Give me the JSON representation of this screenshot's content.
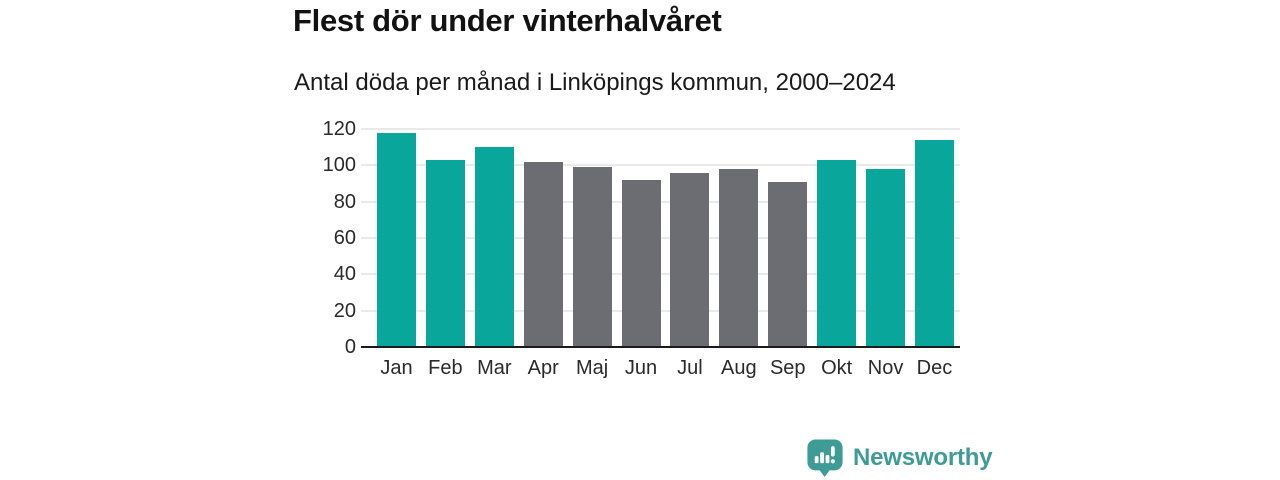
{
  "header": {
    "title": "Flest dör under vinterhalvåret",
    "subtitle": "Antal döda per månad i Linköpings kommun, 2000–2024"
  },
  "chart_data": {
    "type": "bar",
    "title": "Flest dör under vinterhalvåret",
    "subtitle": "Antal döda per månad i Linköpings kommun, 2000–2024",
    "categories": [
      "Jan",
      "Feb",
      "Mar",
      "Apr",
      "Maj",
      "Jun",
      "Jul",
      "Aug",
      "Sep",
      "Okt",
      "Nov",
      "Dec"
    ],
    "values": [
      118,
      103,
      110,
      102,
      99,
      92,
      96,
      98,
      91,
      103,
      98,
      114
    ],
    "xlabel": "",
    "ylabel": "",
    "ylim": [
      0,
      120
    ],
    "yticks": [
      0,
      20,
      40,
      60,
      80,
      100,
      120
    ],
    "grid": true,
    "legend": false,
    "highlight_color": "#09A79B",
    "base_color": "#6C6C73",
    "highlighted_categories": [
      "Jan",
      "Feb",
      "Mar",
      "Okt",
      "Nov",
      "Dec"
    ]
  },
  "footer": {
    "brand": "Newsworthy",
    "brand_color": "#3E9B96",
    "logo_icon": "newsworthy-bubble-bar-chart-icon"
  }
}
